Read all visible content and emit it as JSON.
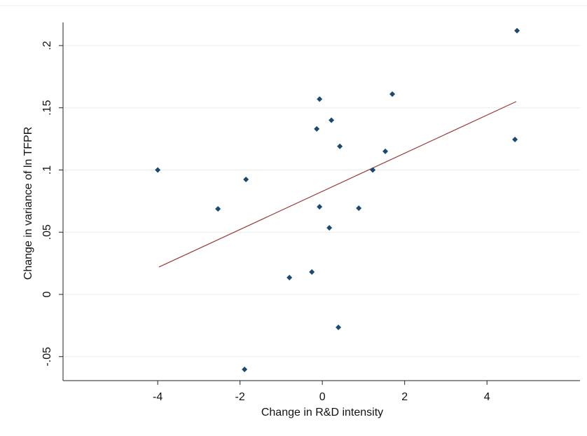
{
  "chart_data": {
    "type": "scatter",
    "x_label": "Change in R&D intensity",
    "y_label": "Change in variance of ln TFPR",
    "xlim": [
      -6.3,
      6.26
    ],
    "ylim": [
      -0.0693,
      0.2186
    ],
    "xticks": [
      -4,
      -2,
      0,
      2,
      4
    ],
    "yticks": [
      {
        "value": -0.05,
        "label": "-.05"
      },
      0,
      {
        "value": 0.05,
        "label": ".05"
      },
      {
        "value": 0.1,
        "label": ".1"
      },
      {
        "value": 0.15,
        "label": ".15"
      },
      {
        "value": 0.2,
        "label": ".2"
      }
    ],
    "grid": true,
    "series": [
      {
        "color": "#1a4a72",
        "x": [
          -4.0,
          -2.536,
          -1.855,
          -1.89,
          -0.8,
          -0.255,
          -0.136,
          -0.068,
          -0.068,
          0.17,
          0.22,
          0.425,
          0.39,
          0.885,
          1.225,
          1.53,
          1.7,
          4.68,
          4.73
        ],
        "values": [
          0.1,
          0.0687,
          0.0924,
          -0.0603,
          0.0135,
          0.018,
          0.133,
          0.157,
          0.0704,
          0.0535,
          0.14,
          0.119,
          -0.0265,
          0.0693,
          0.1,
          0.115,
          0.161,
          0.1245,
          0.212
        ]
      }
    ],
    "fit_line": {
      "color": "#9b3a3a",
      "x": [
        -3.97,
        4.71
      ],
      "values": [
        0.022,
        0.155
      ]
    }
  }
}
